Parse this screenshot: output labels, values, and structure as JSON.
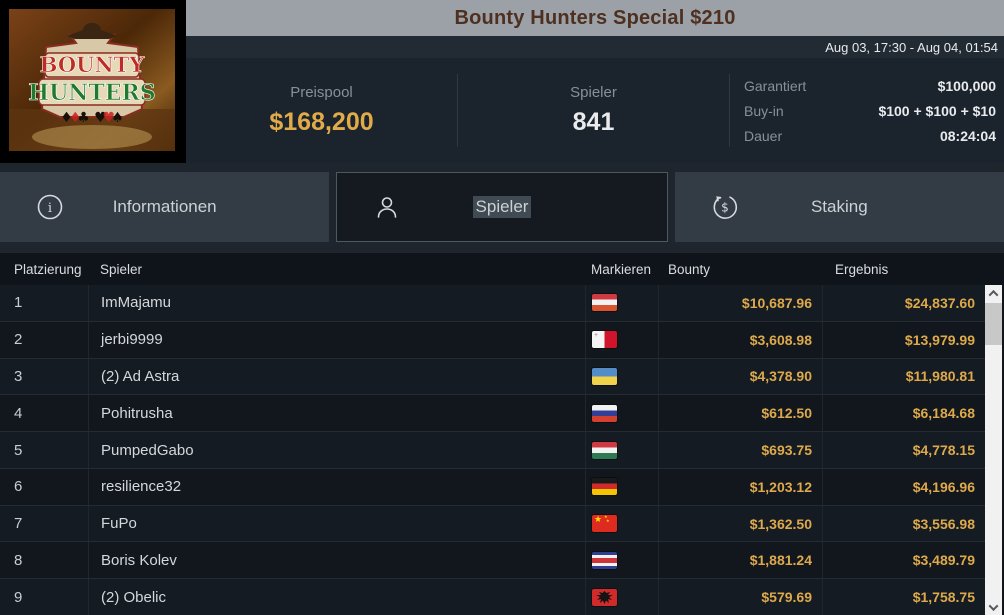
{
  "window": {
    "title": "Bounty Hunters Special $210",
    "schedule": "Aug 03, 17:30 - Aug 04, 01:54"
  },
  "logo": {
    "line1": "BOUNTY",
    "line2": "HUNTERS",
    "suits": "♦ ♣ ♥ ♠"
  },
  "summary": {
    "prizepool": {
      "label": "Preispool",
      "value": "$168,200"
    },
    "players": {
      "label": "Spieler",
      "value": "841"
    },
    "details": [
      {
        "label": "Garantiert",
        "value": "$100,000"
      },
      {
        "label": "Buy-in",
        "value": "$100 + $100 + $10"
      },
      {
        "label": "Dauer",
        "value": "08:24:04"
      }
    ]
  },
  "tabs": [
    {
      "label": "Informationen",
      "icon": "info-icon",
      "active": false
    },
    {
      "label": "Spieler",
      "icon": "person-icon",
      "active": true
    },
    {
      "label": "Staking",
      "icon": "dollar-circle-icon",
      "active": false
    }
  ],
  "table": {
    "columns": [
      "Platzierung",
      "Spieler",
      "Markieren",
      "Bounty",
      "Ergebnis"
    ],
    "rows": [
      {
        "rank": "1",
        "player": "ImMajamu",
        "country": "austria",
        "bounty": "$10,687.96",
        "result": "$24,837.60"
      },
      {
        "rank": "2",
        "player": "jerbi9999",
        "country": "malta",
        "bounty": "$3,608.98",
        "result": "$13,979.99"
      },
      {
        "rank": "3",
        "player": "(2) Ad Astra",
        "country": "ukraine",
        "bounty": "$4,378.90",
        "result": "$11,980.81"
      },
      {
        "rank": "4",
        "player": "Pohitrusha",
        "country": "russia",
        "bounty": "$612.50",
        "result": "$6,184.68"
      },
      {
        "rank": "5",
        "player": "PumpedGabo",
        "country": "hungary",
        "bounty": "$693.75",
        "result": "$4,778.15"
      },
      {
        "rank": "6",
        "player": "resilience32",
        "country": "germany",
        "bounty": "$1,203.12",
        "result": "$4,196.96"
      },
      {
        "rank": "7",
        "player": "FuPo",
        "country": "china",
        "bounty": "$1,362.50",
        "result": "$3,556.98"
      },
      {
        "rank": "8",
        "player": "Boris Kolev",
        "country": "costa-rica",
        "bounty": "$1,881.24",
        "result": "$3,489.79"
      },
      {
        "rank": "9",
        "player": "(2) Obelic",
        "country": "albania",
        "bounty": "$579.69",
        "result": "$1,758.75"
      }
    ]
  },
  "colors": {
    "accent_gold": "#e2ab49",
    "titlebar_bg": "#9ba1a7",
    "title_text": "#4e3020",
    "panel_bg": "#1b242d",
    "tab_bg": "#333c45",
    "tab_active_bg": "#141a20",
    "row_money": "#dda94b"
  }
}
